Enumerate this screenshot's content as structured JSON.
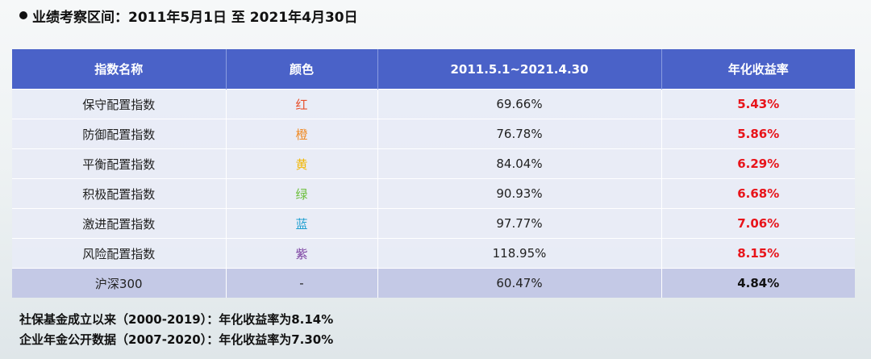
{
  "heading": "业绩考察区间：2011年5月1日 至 2021年4月30日",
  "table": {
    "headers": [
      "指数名称",
      "颜色",
      "2011.5.1~2021.4.30",
      "年化收益率"
    ],
    "rows": [
      {
        "name": "保守配置指数",
        "color_label": "红",
        "color_hex": "#e8502c",
        "total_return": "69.66%",
        "annualized": "5.43%"
      },
      {
        "name": "防御配置指数",
        "color_label": "橙",
        "color_hex": "#f08a24",
        "total_return": "76.78%",
        "annualized": "5.86%"
      },
      {
        "name": "平衡配置指数",
        "color_label": "黄",
        "color_hex": "#f2b705",
        "total_return": "84.04%",
        "annualized": "6.29%"
      },
      {
        "name": "积极配置指数",
        "color_label": "绿",
        "color_hex": "#6cbf3c",
        "total_return": "90.93%",
        "annualized": "6.68%"
      },
      {
        "name": "激进配置指数",
        "color_label": "蓝",
        "color_hex": "#1e9fd0",
        "total_return": "97.77%",
        "annualized": "7.06%"
      },
      {
        "name": "风险配置指数",
        "color_label": "紫",
        "color_hex": "#7a3fa0",
        "total_return": "118.95%",
        "annualized": "8.15%"
      }
    ],
    "benchmark": {
      "name": "沪深300",
      "color_label": "-",
      "total_return": "60.47%",
      "annualized": "4.84%"
    }
  },
  "footnotes": [
    "社保基金成立以来（2000-2019）：年化收益率为8.14%",
    "企业年金公开数据（2007-2020）：年化收益率为7.30%"
  ],
  "colors": {
    "header_bg": "#4a62c8",
    "rate_red": "#e8141a",
    "benchmark_bg": "#c4c9e6"
  }
}
